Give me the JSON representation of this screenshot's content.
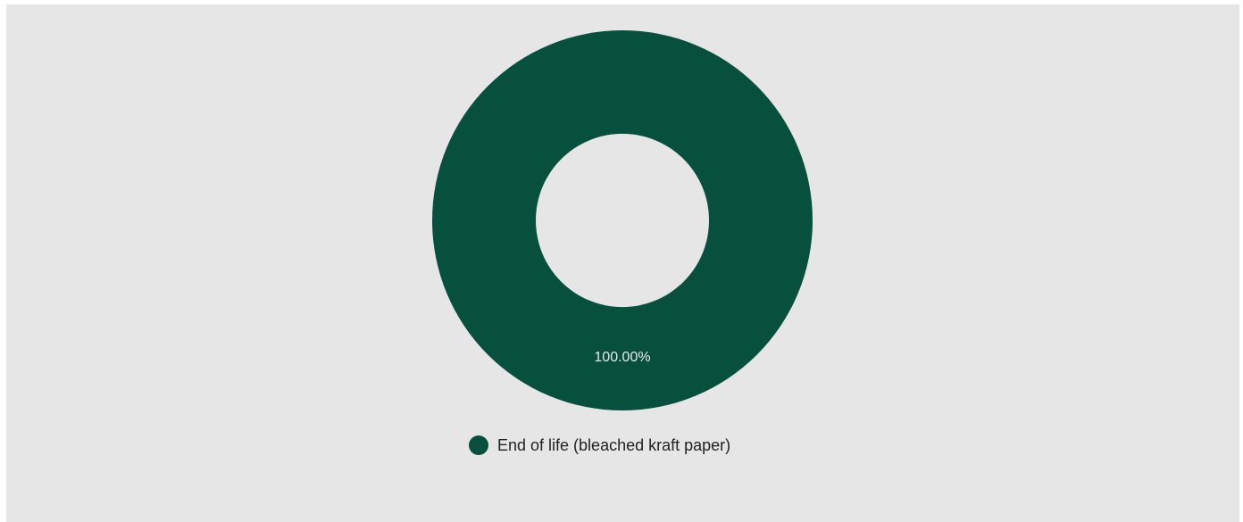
{
  "chart_data": {
    "type": "pie",
    "donut": true,
    "slices": [
      {
        "label": "End of life (bleached kraft paper)",
        "value": 100.0,
        "display": "100.00%",
        "color": "#07503d"
      }
    ],
    "legend_position": "bottom-center",
    "label_color": "#e8e8e8"
  },
  "colors": {
    "background": "#e6e6e6"
  }
}
